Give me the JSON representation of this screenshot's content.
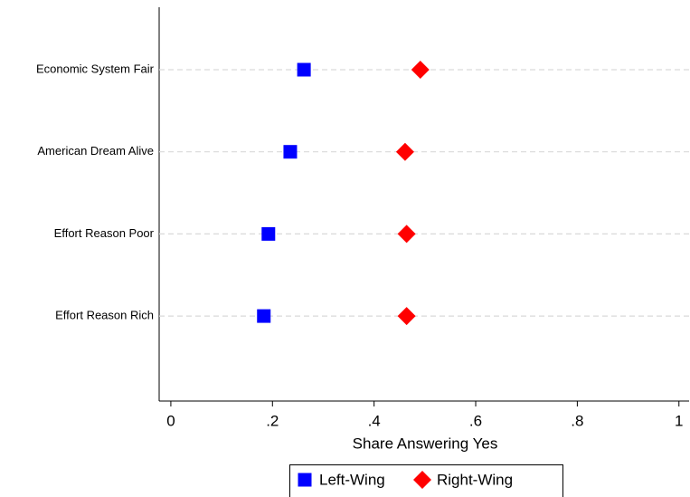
{
  "chart_data": {
    "type": "dot",
    "categories": [
      "Economic System Fair",
      "American Dream Alive",
      "Effort Reason Poor",
      "Effort Reason Rich"
    ],
    "series": [
      {
        "name": "Left-Wing",
        "color": "#0000ff",
        "marker": "square",
        "values": [
          0.262,
          0.235,
          0.192,
          0.183
        ]
      },
      {
        "name": "Right-Wing",
        "color": "#ff0000",
        "marker": "diamond",
        "values": [
          0.491,
          0.461,
          0.464,
          0.464
        ]
      }
    ],
    "xlabel": "Share Answering Yes",
    "xlim": [
      -0.023,
      1.02
    ],
    "xticks": [
      0,
      {
        "value": 0.2,
        "label": ".2"
      },
      {
        "value": 0.4,
        "label": ".4"
      },
      {
        "value": 0.6,
        "label": ".6"
      },
      {
        "value": 0.8,
        "label": ".8"
      },
      1
    ],
    "grid": true,
    "legend": "bottom"
  }
}
